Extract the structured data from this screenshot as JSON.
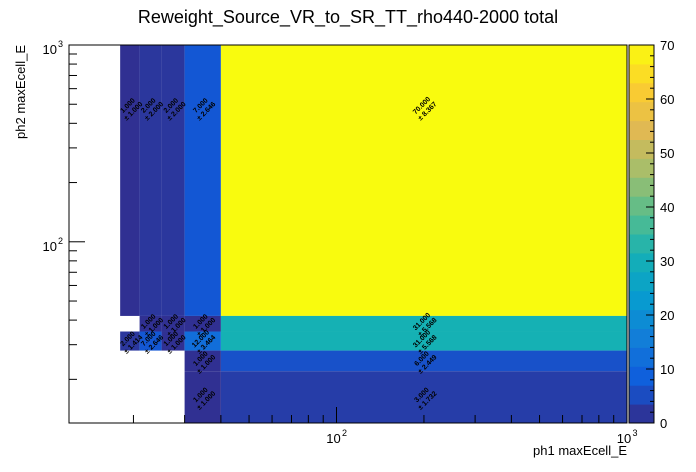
{
  "chart_data": {
    "type": "heatmap",
    "title": "Reweight_Source_VR_to_SR_TT_rho440-2000 total",
    "xlabel": "ph1 maxEcell_E",
    "ylabel": "ph2 maxEcell_E",
    "x_scale": "log",
    "y_scale": "log",
    "xlim": [
      12,
      1000
    ],
    "ylim": [
      12,
      1000
    ],
    "x_ticks": [
      {
        "value": 100,
        "label": "10",
        "exp": "2"
      },
      {
        "value": 1000,
        "label": "10",
        "exp": "3"
      }
    ],
    "y_ticks": [
      {
        "value": 100,
        "label": "10",
        "exp": "2"
      },
      {
        "value": 1000,
        "label": "10",
        "exp": "3"
      }
    ],
    "colorbar": {
      "min": 0,
      "max": 70,
      "ticks": [
        0,
        10,
        20,
        30,
        40,
        50,
        60,
        70
      ]
    },
    "cells": [
      {
        "x": [
          18,
          21
        ],
        "y": [
          42,
          1000
        ],
        "value": 1.0,
        "error": 1.0
      },
      {
        "x": [
          21,
          25
        ],
        "y": [
          42,
          1000
        ],
        "value": 2.0,
        "error": 2.0
      },
      {
        "x": [
          25,
          30
        ],
        "y": [
          42,
          1000
        ],
        "value": 2.0,
        "error": 2.0
      },
      {
        "x": [
          30,
          40
        ],
        "y": [
          42,
          1000
        ],
        "value": 7.0,
        "error": 2.646
      },
      {
        "x": [
          40,
          1000
        ],
        "y": [
          42,
          1000
        ],
        "value": 70.0,
        "error": 8.367
      },
      {
        "x": [
          21,
          25
        ],
        "y": [
          35,
          42
        ],
        "value": 1.0,
        "error": 1.0
      },
      {
        "x": [
          25,
          30
        ],
        "y": [
          35,
          42
        ],
        "value": 1.0,
        "error": 1.0
      },
      {
        "x": [
          30,
          40
        ],
        "y": [
          35,
          42
        ],
        "value": 1.0,
        "error": 1.0
      },
      {
        "x": [
          40,
          1000
        ],
        "y": [
          35,
          42
        ],
        "value": 31.0,
        "error": 5.568
      },
      {
        "x": [
          18,
          21
        ],
        "y": [
          28,
          35
        ],
        "value": 2.0,
        "error": 1.414
      },
      {
        "x": [
          21,
          25
        ],
        "y": [
          28,
          35
        ],
        "value": 7.0,
        "error": 2.646
      },
      {
        "x": [
          25,
          30
        ],
        "y": [
          28,
          35
        ],
        "value": 1.0,
        "error": 1.0
      },
      {
        "x": [
          30,
          40
        ],
        "y": [
          28,
          35
        ],
        "value": 12.0,
        "error": 3.464
      },
      {
        "x": [
          40,
          1000
        ],
        "y": [
          28,
          35
        ],
        "value": 31.0,
        "error": 5.568
      },
      {
        "x": [
          30,
          40
        ],
        "y": [
          22,
          28
        ],
        "value": 1.0,
        "error": 1.0
      },
      {
        "x": [
          40,
          1000
        ],
        "y": [
          22,
          28
        ],
        "value": 6.0,
        "error": 2.449
      },
      {
        "x": [
          30,
          40
        ],
        "y": [
          12,
          22
        ],
        "value": 1.0,
        "error": 1.0
      },
      {
        "x": [
          40,
          1000
        ],
        "y": [
          12,
          22
        ],
        "value": 3.0,
        "error": 1.732
      }
    ]
  }
}
